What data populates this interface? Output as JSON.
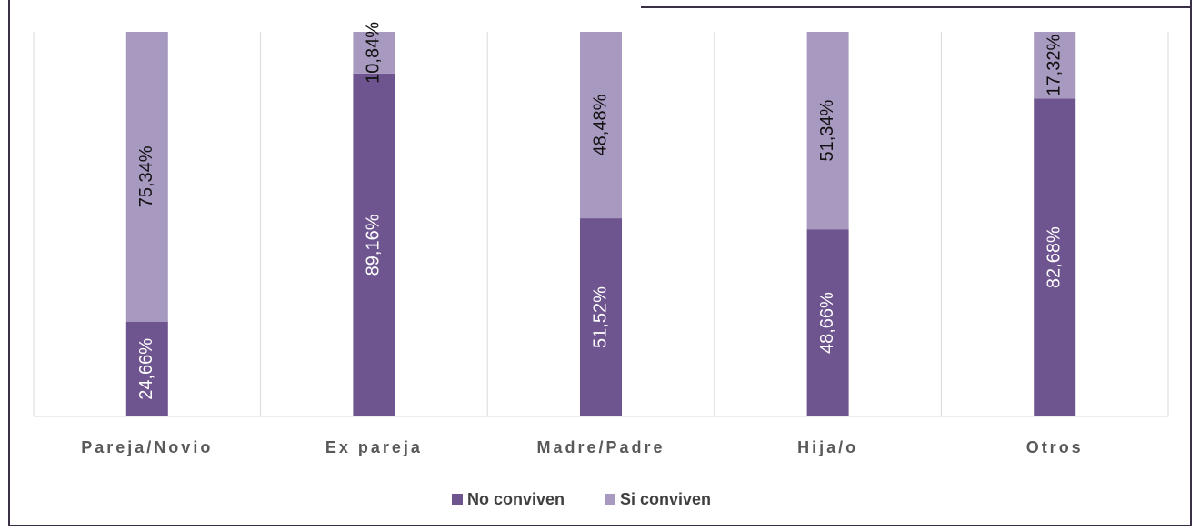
{
  "chart_data": {
    "type": "stacked_bar",
    "categories": [
      "Pareja/Novio",
      "Ex pareja",
      "Madre/Padre",
      "Hija/o",
      "Otros"
    ],
    "series": [
      {
        "name": "No conviven",
        "color": "#6f5590",
        "values": [
          24.66,
          89.16,
          51.52,
          48.66,
          82.68
        ],
        "value_labels": [
          "24,66%",
          "89,16%",
          "51,52%",
          "48,66%",
          "82,68%"
        ]
      },
      {
        "name": "Si conviven",
        "color": "#a899c0",
        "values": [
          75.34,
          10.84,
          48.48,
          51.34,
          17.32
        ],
        "value_labels": [
          "75,34%",
          "10,84%",
          "48,48%",
          "51,34%",
          "17,32%"
        ]
      }
    ],
    "ylim": [
      0,
      100
    ],
    "legend": "bottom"
  }
}
